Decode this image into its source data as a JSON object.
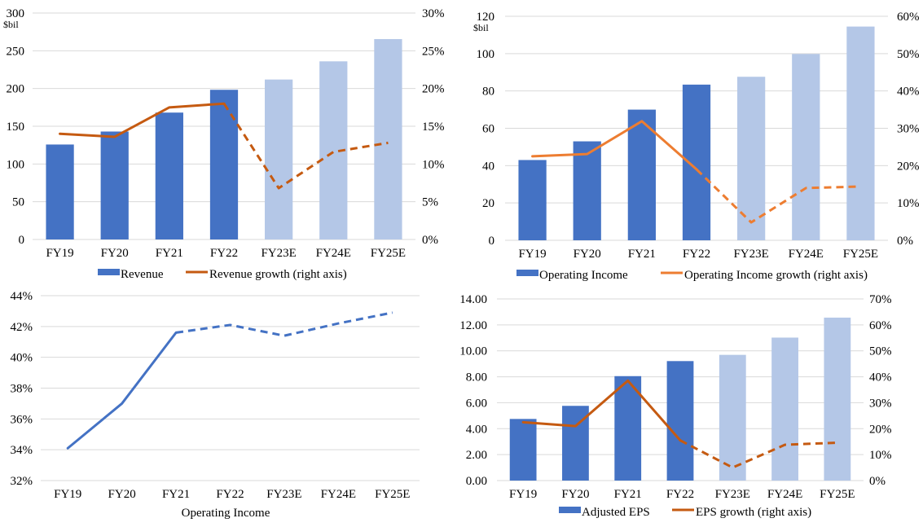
{
  "colors": {
    "bar_actual": "#4472C4",
    "bar_estimate": "#B4C7E7",
    "line_revenue": "#C55A11",
    "line_opinc": "#ED7D31",
    "line_margin": "#4472C4",
    "line_eps": "#C55A11",
    "grid": "#D9D9D9"
  },
  "chart_data": [
    {
      "type": "bar",
      "categories": [
        "FY19",
        "FY20",
        "FY21",
        "FY22",
        "FY23E",
        "FY24E",
        "FY25E"
      ],
      "estimate_from_index": 4,
      "left_axis": {
        "unit": "$bil",
        "min": 0,
        "max": 300,
        "ticks": [
          "0",
          "50",
          "100",
          "150",
          "200",
          "250",
          "300"
        ]
      },
      "right_axis": {
        "min": 0,
        "max": 30,
        "ticks": [
          "0%",
          "5%",
          "10%",
          "15%",
          "20%",
          "25%",
          "30%"
        ]
      },
      "series": [
        {
          "name": "Revenue",
          "kind": "bar",
          "axis": "left",
          "values": [
            125.8,
            143.0,
            168.1,
            198.3,
            211.9,
            236.0,
            265.5
          ]
        },
        {
          "name": "Revenue growth (right axis)",
          "kind": "line",
          "axis": "right",
          "values": [
            14.0,
            13.6,
            17.5,
            18.0,
            6.8,
            11.6,
            12.8
          ]
        }
      ],
      "grid": true,
      "legend": "bottom"
    },
    {
      "type": "bar",
      "categories": [
        "FY19",
        "FY20",
        "FY21",
        "FY22",
        "FY23E",
        "FY24E",
        "FY25E"
      ],
      "estimate_from_index": 4,
      "left_axis": {
        "unit": "$bil",
        "min": 0,
        "max": 120,
        "ticks": [
          "0",
          "20",
          "40",
          "60",
          "80",
          "100",
          "120"
        ]
      },
      "right_axis": {
        "min": 0,
        "max": 60,
        "ticks": [
          "0%",
          "10%",
          "20%",
          "30%",
          "40%",
          "50%",
          "60%"
        ]
      },
      "series": [
        {
          "name": "Operating Income",
          "kind": "bar",
          "axis": "left",
          "values": [
            43.0,
            53.0,
            70.0,
            83.4,
            87.6,
            99.8,
            114.5
          ]
        },
        {
          "name": "Operating Income growth (right axis)",
          "kind": "line",
          "axis": "right",
          "values": [
            22.5,
            23.1,
            31.9,
            19.0,
            4.8,
            14.0,
            14.4
          ]
        }
      ],
      "grid": true,
      "legend": "bottom"
    },
    {
      "type": "line",
      "categories": [
        "FY19",
        "FY20",
        "FY21",
        "FY22",
        "FY23E",
        "FY24E",
        "FY25E"
      ],
      "estimate_from_index": 3,
      "left_axis": {
        "min": 32,
        "max": 44,
        "ticks": [
          "32%",
          "34%",
          "36%",
          "38%",
          "40%",
          "42%",
          "44%"
        ]
      },
      "series": [
        {
          "name": "Operating Income",
          "kind": "line",
          "axis": "left",
          "values": [
            34.1,
            37.0,
            41.6,
            42.1,
            41.4,
            42.2,
            42.9
          ]
        }
      ],
      "xlabel": "Operating Income",
      "grid": true,
      "legend": "none"
    },
    {
      "type": "bar",
      "categories": [
        "FY19",
        "FY20",
        "FY21",
        "FY22",
        "FY23E",
        "FY24E",
        "FY25E"
      ],
      "estimate_from_index": 4,
      "left_axis": {
        "min": 0,
        "max": 14,
        "ticks": [
          "0.00",
          "2.00",
          "4.00",
          "6.00",
          "8.00",
          "10.00",
          "12.00",
          "14.00"
        ]
      },
      "right_axis": {
        "min": 0,
        "max": 70,
        "ticks": [
          "0%",
          "10%",
          "20%",
          "30%",
          "40%",
          "50%",
          "60%",
          "70%"
        ]
      },
      "series": [
        {
          "name": "Adjusted EPS",
          "kind": "bar",
          "axis": "left",
          "values": [
            4.75,
            5.76,
            8.05,
            9.21,
            9.69,
            11.02,
            12.56
          ]
        },
        {
          "name": "EPS growth (right axis)",
          "kind": "line",
          "axis": "right",
          "values": [
            22.5,
            21.0,
            38.5,
            15.5,
            5.0,
            13.8,
            14.6
          ]
        }
      ],
      "grid": true,
      "legend": "bottom"
    }
  ]
}
